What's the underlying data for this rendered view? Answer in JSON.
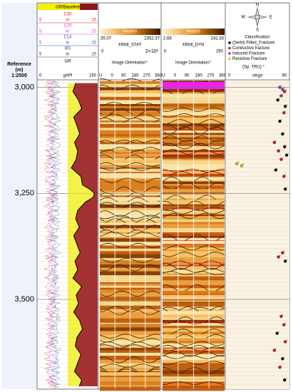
{
  "left_header": {
    "title": "Reference",
    "unit": "(m)",
    "scale": "1:2500"
  },
  "depth_axis": {
    "lim": [
      2984,
      3710
    ],
    "ticks": [
      {
        "value": 3000,
        "label": "3,000"
      },
      {
        "value": 3250,
        "label": "3,250"
      },
      {
        "value": 3500,
        "label": "3,500"
      }
    ]
  },
  "gr_track": {
    "header": "GR/Baseline",
    "curves": [
      {
        "name": "C30",
        "min": "5",
        "unit": "in",
        "max": "25",
        "color": "#e02020"
      },
      {
        "name": "C25",
        "min": "5",
        "unit": "in",
        "max": "25",
        "color": "#e040e0"
      },
      {
        "name": "C14",
        "min": "5",
        "unit": "in",
        "max": "25",
        "color": "#3050e0"
      },
      {
        "name": "BS",
        "min": "5",
        "unit": "in",
        "max": "25",
        "color": "#404040"
      }
    ],
    "gr": {
      "name": "GR",
      "min": "0",
      "unit": "gAPI",
      "max": "150",
      "xlim": [
        0,
        150
      ],
      "color": "#000000",
      "depth": [
        2990,
        3010,
        3030,
        3050,
        3070,
        3090,
        3110,
        3130,
        3150,
        3170,
        3190,
        3210,
        3230,
        3240,
        3250,
        3260,
        3270,
        3290,
        3310,
        3330,
        3350,
        3370,
        3390,
        3410,
        3430,
        3450,
        3470,
        3490,
        3510,
        3530,
        3550,
        3570,
        3590,
        3610,
        3630,
        3650,
        3670,
        3690,
        3705
      ],
      "values": [
        95,
        88,
        102,
        110,
        90,
        98,
        105,
        92,
        100,
        96,
        84,
        108,
        112,
        130,
        142,
        138,
        120,
        100,
        95,
        104,
        90,
        98,
        106,
        93,
        100,
        88,
        110,
        96,
        102,
        90,
        105,
        112,
        98,
        94,
        108,
        100,
        92,
        110,
        104
      ]
    }
  },
  "stat_track": {
    "legend": "Heated",
    "min": "35.07",
    "max": "2352.37",
    "name": "XRMI_STAT",
    "scale_min": "0",
    "scale_max": "2×10³",
    "orientation": "Image Orientation°",
    "ticks": [
      "U",
      "0",
      "90",
      "180",
      "270",
      "360"
    ]
  },
  "dyn_track": {
    "legend": "Heated",
    "min": "2.66",
    "max": "241.33",
    "name": "XRMI_DYN",
    "scale_min": "0",
    "scale_max": "260",
    "orientation": "Image Orientation°",
    "ticks": [
      "U",
      "0",
      "90",
      "180",
      "270",
      "360"
    ]
  },
  "dip_track": {
    "compass": [
      "N",
      "E",
      "S",
      "W"
    ],
    "title": "Classification",
    "legend": [
      {
        "name": "(Semi) Filled_Fracture",
        "color": "#000000"
      },
      {
        "name": "Conductive fracture",
        "color": "#e01010"
      },
      {
        "name": "Induced Fracture",
        "color": "#9030c0"
      },
      {
        "name": "Resistive Fracture",
        "color": "#d8c000"
      }
    ],
    "unit": "(Sp. TRU) °",
    "xlim": [
      0,
      90
    ],
    "xmin_label": "0",
    "axis_label": "clega",
    "xmax_label": "90",
    "points": [
      {
        "depth": 3000,
        "dip": 78,
        "class": 2
      },
      {
        "depth": 3005,
        "dip": 82,
        "class": 2
      },
      {
        "depth": 3010,
        "dip": 85,
        "class": 1
      },
      {
        "depth": 3020,
        "dip": 80,
        "class": 2
      },
      {
        "depth": 3030,
        "dip": 75,
        "class": 0
      },
      {
        "depth": 3045,
        "dip": 86,
        "class": 0
      },
      {
        "depth": 3060,
        "dip": 84,
        "class": 1
      },
      {
        "depth": 3080,
        "dip": 78,
        "class": 0
      },
      {
        "depth": 3110,
        "dip": 82,
        "class": 0
      },
      {
        "depth": 3130,
        "dip": 70,
        "class": 1
      },
      {
        "depth": 3140,
        "dip": 85,
        "class": 0
      },
      {
        "depth": 3150,
        "dip": 76,
        "class": 1
      },
      {
        "depth": 3160,
        "dip": 88,
        "class": 0
      },
      {
        "depth": 3170,
        "dip": 80,
        "class": 1
      },
      {
        "depth": 3180,
        "dip": 15,
        "class": 3
      },
      {
        "depth": 3185,
        "dip": 22,
        "class": 3
      },
      {
        "depth": 3195,
        "dip": 72,
        "class": 0
      },
      {
        "depth": 3210,
        "dip": 84,
        "class": 1
      },
      {
        "depth": 3240,
        "dip": 86,
        "class": 0
      },
      {
        "depth": 3390,
        "dip": 82,
        "class": 1
      },
      {
        "depth": 3400,
        "dip": 76,
        "class": 1
      },
      {
        "depth": 3410,
        "dip": 86,
        "class": 0
      },
      {
        "depth": 3540,
        "dip": 80,
        "class": 1
      },
      {
        "depth": 3560,
        "dip": 84,
        "class": 1
      },
      {
        "depth": 3580,
        "dip": 74,
        "class": 0
      },
      {
        "depth": 3600,
        "dip": 86,
        "class": 1
      },
      {
        "depth": 3620,
        "dip": 70,
        "class": 1
      },
      {
        "depth": 3640,
        "dip": 82,
        "class": 0
      },
      {
        "depth": 3660,
        "dip": 78,
        "class": 1
      },
      {
        "depth": 3690,
        "dip": 85,
        "class": 0
      }
    ]
  }
}
